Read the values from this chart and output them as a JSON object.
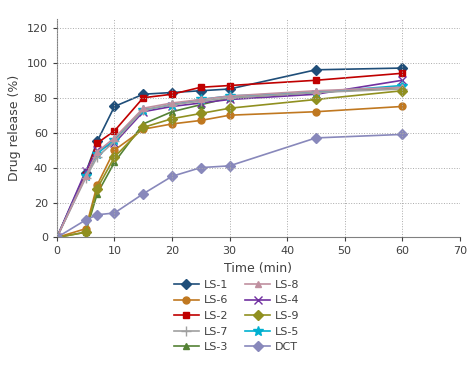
{
  "time": [
    0,
    5,
    7,
    10,
    15,
    20,
    25,
    30,
    45,
    60
  ],
  "series_order": [
    "LS-1",
    "LS-2",
    "LS-3",
    "LS-4",
    "LS-5",
    "LS-6",
    "LS-7",
    "LS-8",
    "LS-9",
    "DCT"
  ],
  "series": {
    "LS-1": {
      "values": [
        0,
        37,
        55,
        75,
        82,
        83,
        84,
        85,
        96,
        97
      ],
      "color": "#1f4e79",
      "marker": "D",
      "markersize": 5
    },
    "LS-2": {
      "values": [
        0,
        36,
        54,
        61,
        80,
        82,
        86,
        87,
        90,
        94
      ],
      "color": "#c00000",
      "marker": "s",
      "markersize": 5
    },
    "LS-3": {
      "values": [
        0,
        3,
        25,
        43,
        65,
        72,
        76,
        80,
        83,
        86
      ],
      "color": "#548235",
      "marker": "^",
      "markersize": 5
    },
    "LS-4": {
      "values": [
        0,
        38,
        50,
        54,
        72,
        75,
        77,
        79,
        82,
        90
      ],
      "color": "#7030a0",
      "marker": "x",
      "markersize": 6
    },
    "LS-5": {
      "values": [
        0,
        35,
        48,
        56,
        73,
        76,
        79,
        81,
        83,
        87
      ],
      "color": "#00b0d0",
      "marker": "*",
      "markersize": 7
    },
    "LS-6": {
      "values": [
        0,
        5,
        30,
        50,
        62,
        65,
        67,
        70,
        72,
        75
      ],
      "color": "#c07820",
      "marker": "o",
      "markersize": 5
    },
    "LS-7": {
      "values": [
        0,
        34,
        46,
        55,
        73,
        76,
        78,
        80,
        83,
        85
      ],
      "color": "#a0a0a0",
      "marker": "+",
      "markersize": 7
    },
    "LS-8": {
      "values": [
        0,
        35,
        49,
        57,
        74,
        77,
        79,
        81,
        84,
        86
      ],
      "color": "#c090a0",
      "marker": "^",
      "markersize": 5
    },
    "LS-9": {
      "values": [
        0,
        3,
        28,
        46,
        63,
        68,
        71,
        74,
        79,
        84
      ],
      "color": "#909020",
      "marker": "D",
      "markersize": 5
    },
    "DCT": {
      "values": [
        0,
        10,
        13,
        14,
        25,
        35,
        40,
        41,
        57,
        59
      ],
      "color": "#8888bb",
      "marker": "D",
      "markersize": 5
    }
  },
  "xlabel": "Time (min)",
  "ylabel": "Drug release (%)",
  "xlim": [
    0,
    70
  ],
  "ylim": [
    0,
    125
  ],
  "xticks": [
    0,
    10,
    20,
    30,
    40,
    50,
    60,
    70
  ],
  "yticks": [
    0,
    20,
    40,
    60,
    80,
    100,
    120
  ],
  "legend_col1": [
    "LS-1",
    "LS-2",
    "LS-3",
    "LS-4",
    "LS-5"
  ],
  "legend_col2": [
    "LS-6",
    "LS-7",
    "LS-8",
    "LS-9",
    "DCT"
  ],
  "linewidth": 1.2,
  "background_color": "#ffffff",
  "text_color": "#404040",
  "grid_color": "#aaaaaa",
  "fontsize_label": 9,
  "fontsize_tick": 8,
  "fontsize_legend": 8
}
